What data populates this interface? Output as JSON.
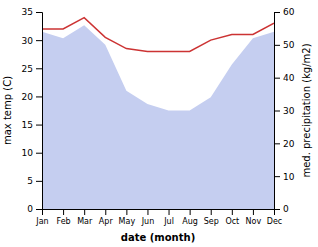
{
  "chart_data": {
    "type": "line",
    "categories": [
      "Jan",
      "Feb",
      "Mar",
      "Apr",
      "May",
      "Jun",
      "Jul",
      "Aug",
      "Sep",
      "Oct",
      "Nov",
      "Dec"
    ],
    "series": [
      {
        "type": "area",
        "axis": "y2",
        "color": "#c5cef0",
        "values": [
          54,
          52,
          56,
          50,
          36,
          32,
          30,
          30,
          34,
          44,
          52,
          54
        ]
      },
      {
        "type": "line",
        "color": "#cc3333",
        "values": [
          32.0,
          32.0,
          34.0,
          30.5,
          28.5,
          28.0,
          28.0,
          28.0,
          30.0,
          31.0,
          31.0,
          33.0
        ]
      }
    ],
    "xlabel": "date (month)",
    "ylabel": "max temp (C)",
    "y2label": "med. precipitation (kg/m2)",
    "ylim": [
      0,
      35
    ],
    "yticks": [
      0,
      5,
      10,
      15,
      20,
      25,
      30,
      35
    ],
    "y2lim": [
      0,
      60
    ],
    "y2ticks": [
      0,
      10,
      20,
      30,
      40,
      50,
      60
    ],
    "grid": false
  }
}
